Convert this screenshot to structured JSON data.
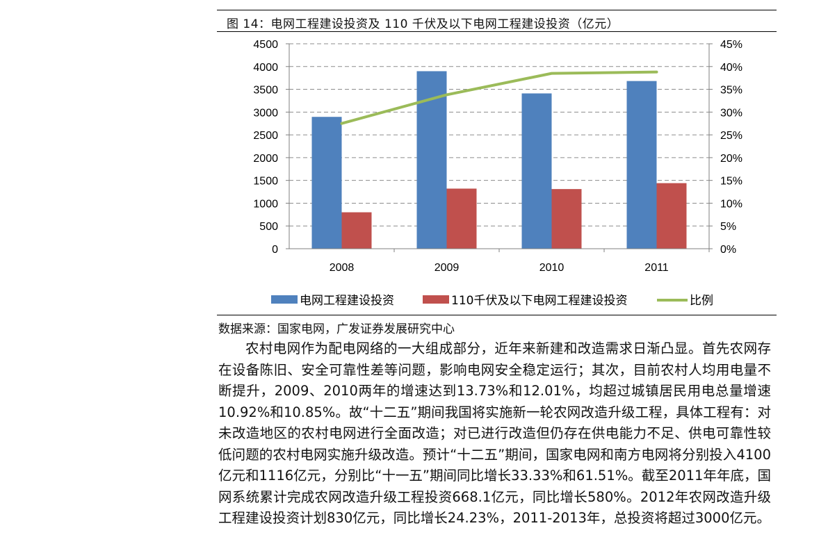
{
  "figure": {
    "title": "图 14：电网工程建设投资及 110 千伏及以下电网工程建设投资（亿元）",
    "source": "数据来源：国家电网，广发证券发展研究中心"
  },
  "chart_data": {
    "type": "bar",
    "categories": [
      "2008",
      "2009",
      "2010",
      "2011"
    ],
    "series": [
      {
        "name": "电网工程建设投资",
        "type": "bar",
        "axis": "left",
        "values": [
          2895,
          3898,
          3410,
          3682
        ],
        "color": "#4f81bd"
      },
      {
        "name": "110千伏及以下电网工程建设投资",
        "type": "bar",
        "axis": "left",
        "values": [
          800,
          1320,
          1310,
          1440
        ],
        "color": "#c0504d"
      },
      {
        "name": "比例",
        "type": "line",
        "axis": "right",
        "values": [
          0.275,
          0.338,
          0.385,
          0.388
        ],
        "color": "#9bbb59"
      }
    ],
    "ylim_left": [
      0,
      4500
    ],
    "ylim_right": [
      0,
      0.45
    ],
    "yticks_left": [
      "0",
      "500",
      "1000",
      "1500",
      "2000",
      "2500",
      "3000",
      "3500",
      "4000",
      "4500"
    ],
    "yticks_right": [
      "0%",
      "5%",
      "10%",
      "15%",
      "20%",
      "25%",
      "30%",
      "35%",
      "40%",
      "45%"
    ],
    "grid": "dashed horizontal",
    "legend_position": "bottom"
  },
  "body_text": "农村电网作为配电网络的一大组成部分，近年来新建和改造需求日渐凸显。首先农网存在设备陈旧、安全可靠性差等问题，影响电网安全稳定运行；其次，目前农村人均用电量不断提升，2009、2010两年的增速达到13.73%和12.01%，均超过城镇居民用电总量增速10.92%和10.85%。故“十二五”期间我国将实施新一轮农网改造升级工程，具体工程有：对未改造地区的农村电网进行全面改造；对已进行改造但仍存在供电能力不足、供电可靠性较低问题的农村电网实施升级改造。预计“十二五”期间，国家电网和南方电网将分别投入4100亿元和1116亿元，分别比“十一五”期间同比增长33.33%和61.51%。截至2011年年底，国网系统累计完成农网改造升级工程投资668.1亿元，同比增长580%。2012年农网改造升级工程建设投资计划830亿元，同比增长24.23%，2011-2013年，总投资将超过3000亿元。"
}
